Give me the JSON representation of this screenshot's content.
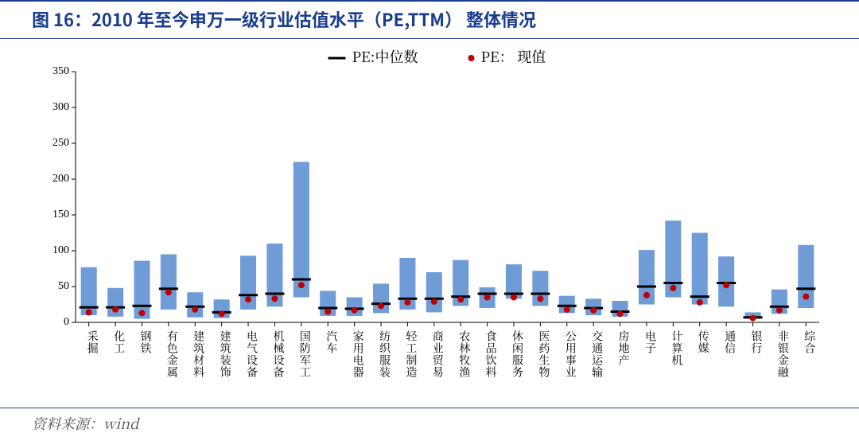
{
  "header": {
    "title": "图 16：2010 年至今申万一级行业估值水平（PE,TTM） 整体情况"
  },
  "footer": {
    "source_label": "资料来源：",
    "source_value": "wind"
  },
  "chart": {
    "type": "bar",
    "legend_median": "PE:中位数",
    "legend_current": "PE： 现值",
    "categories": [
      "采掘",
      "化工",
      "钢铁",
      "有色金属",
      "建筑材料",
      "建筑装饰",
      "电气设备",
      "机械设备",
      "国防军工",
      "汽车",
      "家用电器",
      "纺织服装",
      "轻工制造",
      "商业贸易",
      "农林牧渔",
      "食品饮料",
      "休闲服务",
      "医药生物",
      "公用事业",
      "交通运输",
      "房地产",
      "电子",
      "计算机",
      "传媒",
      "通信",
      "银行",
      "非银金融",
      "综合"
    ],
    "range_low": [
      10,
      8,
      5,
      18,
      7,
      6,
      18,
      22,
      35,
      9,
      9,
      13,
      18,
      14,
      23,
      20,
      33,
      23,
      13,
      10,
      8,
      25,
      35,
      25,
      22,
      5,
      12,
      20
    ],
    "range_high": [
      77,
      48,
      86,
      95,
      42,
      32,
      93,
      110,
      224,
      44,
      35,
      54,
      90,
      70,
      87,
      49,
      81,
      72,
      37,
      33,
      30,
      101,
      142,
      125,
      92,
      14,
      46,
      108
    ],
    "median": [
      21,
      21,
      23,
      47,
      22,
      14,
      38,
      40,
      60,
      20,
      19,
      26,
      33,
      33,
      36,
      40,
      40,
      40,
      23,
      20,
      15,
      50,
      55,
      36,
      55,
      7,
      22,
      47
    ],
    "current": [
      14,
      18,
      13,
      42,
      18,
      12,
      32,
      33,
      52,
      15,
      17,
      23,
      28,
      29,
      32,
      35,
      35,
      33,
      18,
      17,
      12,
      38,
      48,
      28,
      52,
      6,
      17,
      36
    ],
    "ylim": [
      0,
      350
    ],
    "ytick_step": 50,
    "bar_color": "#6f9cd6",
    "dot_color": "#c00000",
    "median_color": "#000000",
    "axis_color": "#000000",
    "background_color": "#ffffff",
    "bar_width_ratio": 0.6,
    "label_fontsize": 14,
    "legend_fontsize": 18,
    "marker_radius": 4
  }
}
